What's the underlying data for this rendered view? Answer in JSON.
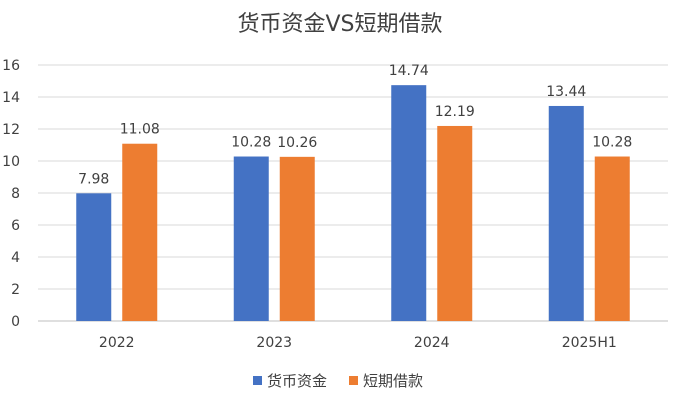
{
  "chart_data": {
    "type": "bar",
    "title": "货币资金VS短期借款",
    "categories": [
      "2022",
      "2023",
      "2024",
      "2025H1"
    ],
    "series": [
      {
        "name": "货币资金",
        "values": [
          7.98,
          10.28,
          14.74,
          13.44
        ],
        "color": "#4472C4"
      },
      {
        "name": "短期借款",
        "values": [
          11.08,
          10.26,
          12.19,
          10.28
        ],
        "color": "#ED7D31"
      }
    ],
    "ylim": [
      0,
      16
    ],
    "yticks": [
      0,
      2,
      4,
      6,
      8,
      10,
      12,
      14,
      16
    ],
    "grid": true,
    "legend": "bottom",
    "data_labels": true
  }
}
